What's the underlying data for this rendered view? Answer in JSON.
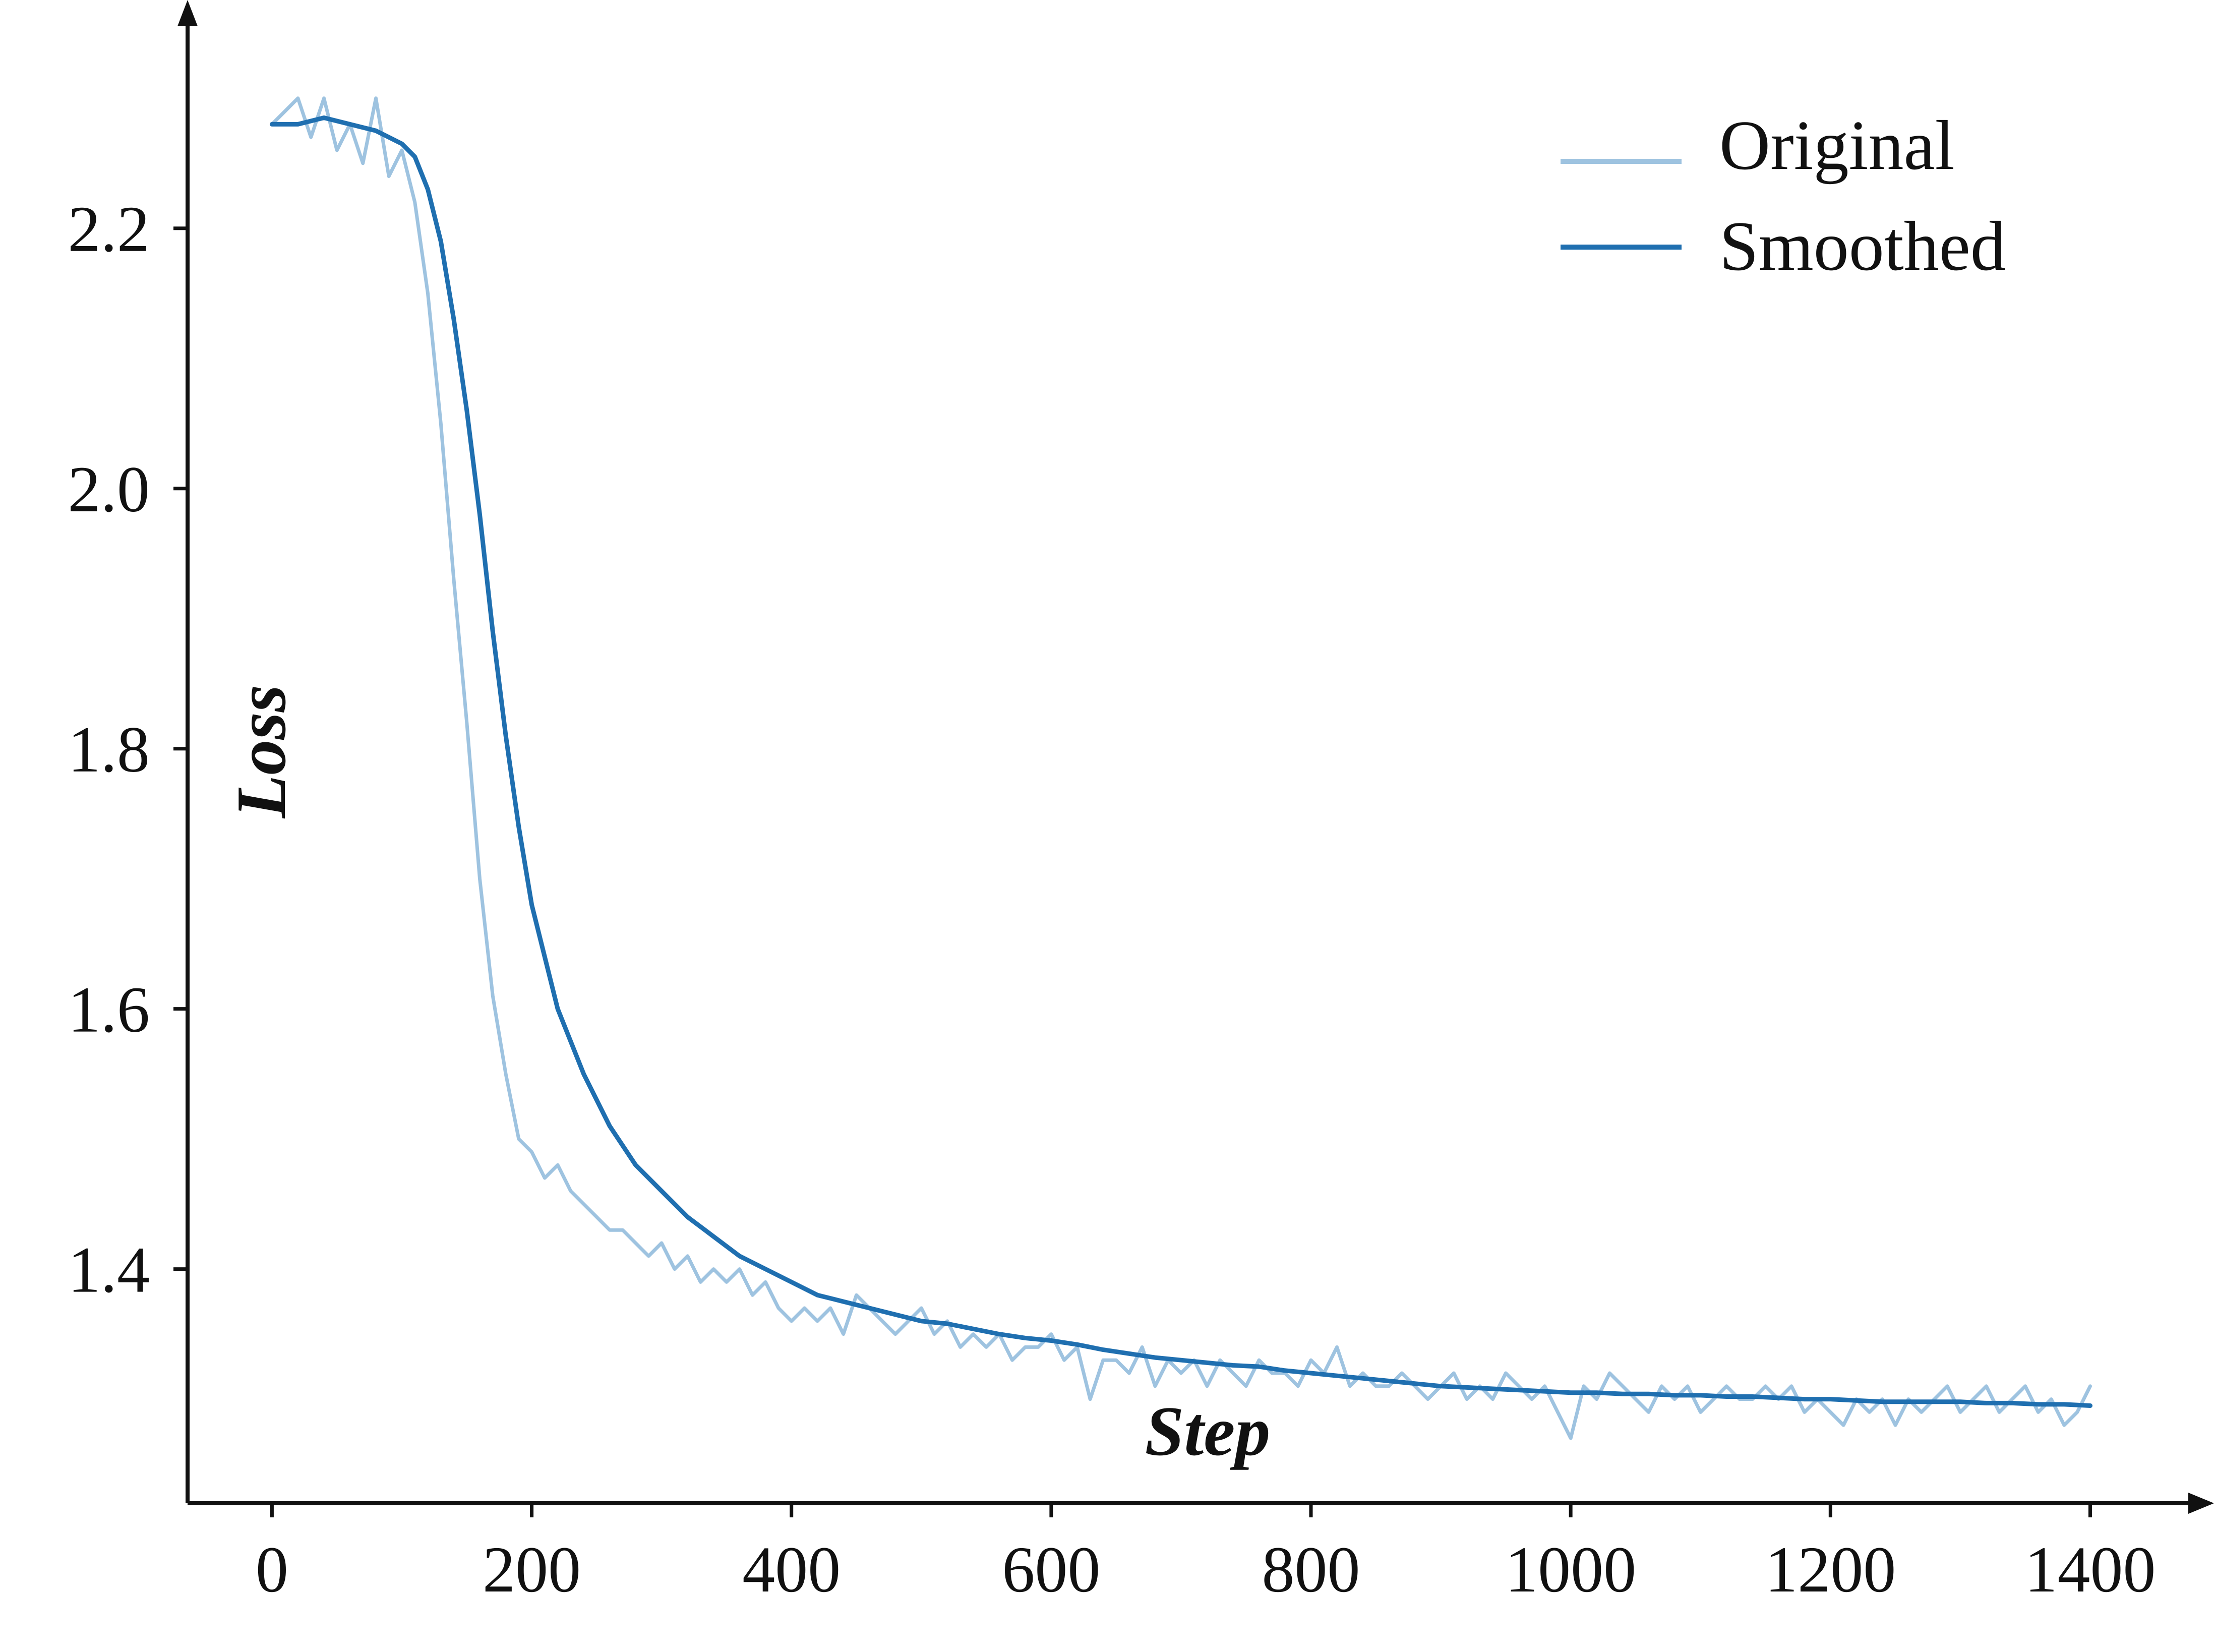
{
  "chart_data": {
    "type": "line",
    "title": "",
    "xlabel": "Step",
    "ylabel": "Loss",
    "xlim": [
      -65,
      1460
    ],
    "ylim": [
      1.22,
      2.36
    ],
    "xticks": [
      0,
      200,
      400,
      600,
      800,
      1000,
      1200,
      1400
    ],
    "xtick_labels": [
      "0",
      "200",
      "400",
      "600",
      "800",
      "1000",
      "1200",
      "1400"
    ],
    "yticks": [
      1.4,
      1.6,
      1.8,
      2.0,
      2.2
    ],
    "ytick_labels": [
      "1.4",
      "1.6",
      "1.8",
      "2.0",
      "2.2"
    ],
    "grid": false,
    "legend": {
      "position": "top-right",
      "entries": [
        "Original",
        "Smoothed"
      ]
    },
    "colors": {
      "Original": "#9ec3e0",
      "Smoothed": "#1f6fb0",
      "axis": "#111111"
    },
    "series": [
      {
        "name": "Original",
        "x": [
          0,
          10,
          20,
          30,
          40,
          50,
          60,
          70,
          80,
          90,
          100,
          110,
          120,
          130,
          140,
          150,
          160,
          170,
          180,
          190,
          200,
          210,
          220,
          230,
          240,
          250,
          260,
          270,
          280,
          290,
          300,
          310,
          320,
          330,
          340,
          350,
          360,
          370,
          380,
          390,
          400,
          410,
          420,
          430,
          440,
          450,
          460,
          470,
          480,
          490,
          500,
          510,
          520,
          530,
          540,
          550,
          560,
          570,
          580,
          590,
          600,
          610,
          620,
          630,
          640,
          650,
          660,
          670,
          680,
          690,
          700,
          710,
          720,
          730,
          740,
          750,
          760,
          770,
          780,
          790,
          800,
          810,
          820,
          830,
          840,
          850,
          860,
          870,
          880,
          890,
          900,
          910,
          920,
          930,
          940,
          950,
          960,
          970,
          980,
          990,
          1000,
          1010,
          1020,
          1030,
          1040,
          1050,
          1060,
          1070,
          1080,
          1090,
          1100,
          1110,
          1120,
          1130,
          1140,
          1150,
          1160,
          1170,
          1180,
          1190,
          1200,
          1210,
          1220,
          1230,
          1240,
          1250,
          1260,
          1270,
          1280,
          1290,
          1300,
          1310,
          1320,
          1330,
          1340,
          1350,
          1360,
          1370,
          1380,
          1390,
          1400
        ],
        "y": [
          2.28,
          2.29,
          2.3,
          2.27,
          2.3,
          2.26,
          2.28,
          2.25,
          2.3,
          2.24,
          2.26,
          2.22,
          2.15,
          2.05,
          1.93,
          1.82,
          1.7,
          1.61,
          1.55,
          1.5,
          1.49,
          1.47,
          1.48,
          1.46,
          1.45,
          1.44,
          1.43,
          1.43,
          1.42,
          1.41,
          1.42,
          1.4,
          1.41,
          1.39,
          1.4,
          1.39,
          1.4,
          1.38,
          1.39,
          1.37,
          1.36,
          1.37,
          1.36,
          1.37,
          1.35,
          1.38,
          1.37,
          1.36,
          1.35,
          1.36,
          1.37,
          1.35,
          1.36,
          1.34,
          1.35,
          1.34,
          1.35,
          1.33,
          1.34,
          1.34,
          1.35,
          1.33,
          1.34,
          1.3,
          1.33,
          1.33,
          1.32,
          1.34,
          1.31,
          1.33,
          1.32,
          1.33,
          1.31,
          1.33,
          1.32,
          1.31,
          1.33,
          1.32,
          1.32,
          1.31,
          1.33,
          1.32,
          1.34,
          1.31,
          1.32,
          1.31,
          1.31,
          1.32,
          1.31,
          1.3,
          1.31,
          1.32,
          1.3,
          1.31,
          1.3,
          1.32,
          1.31,
          1.3,
          1.31,
          1.29,
          1.27,
          1.31,
          1.3,
          1.32,
          1.31,
          1.3,
          1.29,
          1.31,
          1.3,
          1.31,
          1.29,
          1.3,
          1.31,
          1.3,
          1.3,
          1.31,
          1.3,
          1.31,
          1.29,
          1.3,
          1.29,
          1.28,
          1.3,
          1.29,
          1.3,
          1.28,
          1.3,
          1.29,
          1.3,
          1.31,
          1.29,
          1.3,
          1.31,
          1.29,
          1.3,
          1.31,
          1.29,
          1.3,
          1.28,
          1.29,
          1.31
        ]
      },
      {
        "name": "Smoothed",
        "x": [
          0,
          20,
          40,
          60,
          80,
          100,
          110,
          120,
          130,
          140,
          150,
          160,
          170,
          180,
          190,
          200,
          220,
          240,
          260,
          280,
          300,
          320,
          340,
          360,
          380,
          400,
          420,
          440,
          460,
          480,
          500,
          520,
          540,
          560,
          580,
          600,
          620,
          640,
          660,
          680,
          700,
          720,
          740,
          760,
          780,
          800,
          820,
          840,
          860,
          880,
          900,
          920,
          940,
          960,
          980,
          1000,
          1020,
          1040,
          1060,
          1080,
          1100,
          1120,
          1140,
          1160,
          1180,
          1200,
          1220,
          1240,
          1260,
          1280,
          1300,
          1320,
          1340,
          1360,
          1380,
          1400
        ],
        "y": [
          2.28,
          2.28,
          2.285,
          2.28,
          2.275,
          2.265,
          2.255,
          2.23,
          2.19,
          2.13,
          2.06,
          1.98,
          1.89,
          1.81,
          1.74,
          1.68,
          1.6,
          1.55,
          1.51,
          1.48,
          1.46,
          1.44,
          1.425,
          1.41,
          1.4,
          1.39,
          1.38,
          1.375,
          1.37,
          1.365,
          1.36,
          1.358,
          1.354,
          1.35,
          1.347,
          1.345,
          1.342,
          1.338,
          1.335,
          1.332,
          1.33,
          1.328,
          1.326,
          1.325,
          1.322,
          1.32,
          1.318,
          1.316,
          1.314,
          1.312,
          1.31,
          1.309,
          1.308,
          1.307,
          1.306,
          1.305,
          1.305,
          1.304,
          1.304,
          1.303,
          1.303,
          1.302,
          1.302,
          1.301,
          1.3,
          1.3,
          1.299,
          1.298,
          1.298,
          1.298,
          1.298,
          1.297,
          1.297,
          1.296,
          1.296,
          1.295
        ]
      }
    ]
  }
}
